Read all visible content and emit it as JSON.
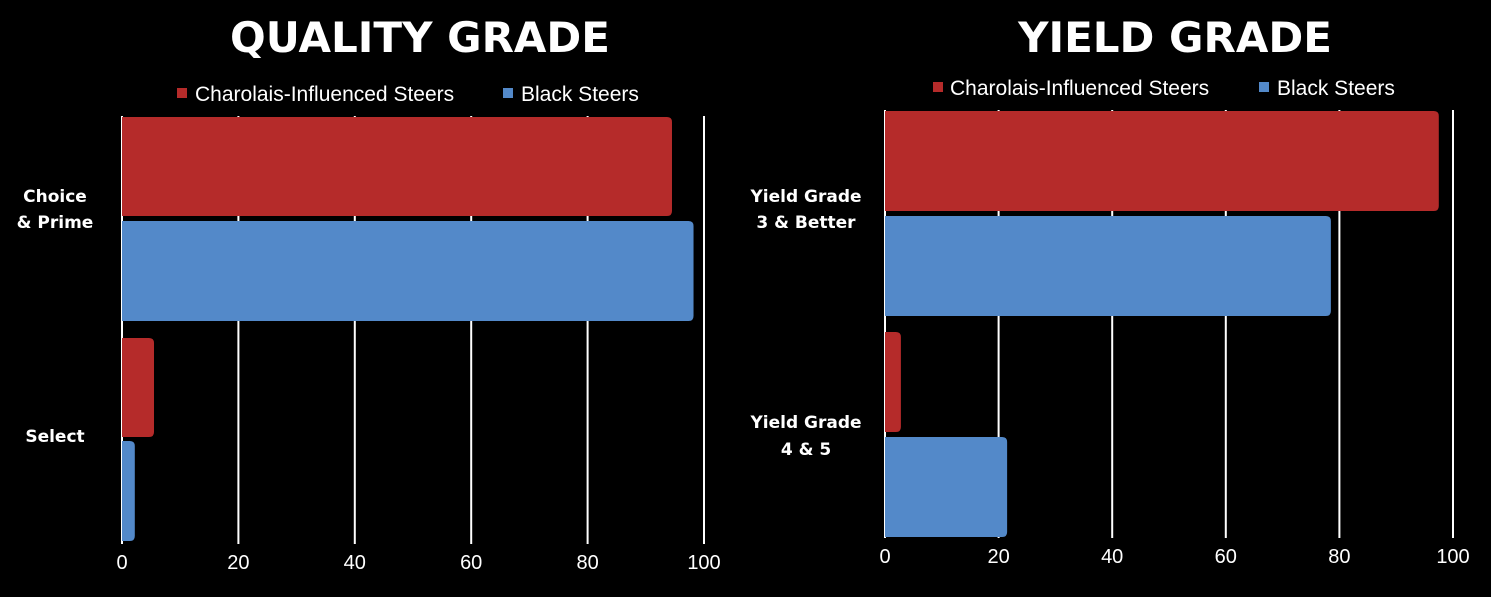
{
  "chart_data": [
    {
      "type": "bar",
      "orientation": "horizontal",
      "title": "QUALITY GRADE",
      "categories": [
        [
          "Choice",
          "& Prime"
        ],
        [
          "Select"
        ]
      ],
      "series": [
        {
          "name": "Charolais-Influenced Steers",
          "color": "#b52b2a",
          "values": [
            94.5,
            5.5
          ]
        },
        {
          "name": "Black Steers",
          "color": "#5389c9",
          "values": [
            98.2,
            2.2
          ]
        }
      ],
      "xlim": [
        0,
        100
      ],
      "xticks": [
        "0",
        "20",
        "40",
        "60",
        "80",
        "100"
      ],
      "xlabel": "",
      "ylabel": "",
      "grid": true,
      "legend": "top"
    },
    {
      "type": "bar",
      "orientation": "horizontal",
      "title": "YIELD GRADE",
      "categories": [
        [
          "Yield Grade",
          "3 & Better"
        ],
        [
          "Yield Grade",
          "4 & 5"
        ]
      ],
      "series": [
        {
          "name": "Charolais-Influenced Steers",
          "color": "#b52b2a",
          "values": [
            97.5,
            2.8
          ]
        },
        {
          "name": "Black Steers",
          "color": "#5389c9",
          "values": [
            78.5,
            21.5
          ]
        }
      ],
      "xlim": [
        0,
        100
      ],
      "xticks": [
        "0",
        "20",
        "40",
        "60",
        "80",
        "100"
      ],
      "xlabel": "",
      "ylabel": "",
      "grid": true,
      "legend": "top"
    }
  ]
}
